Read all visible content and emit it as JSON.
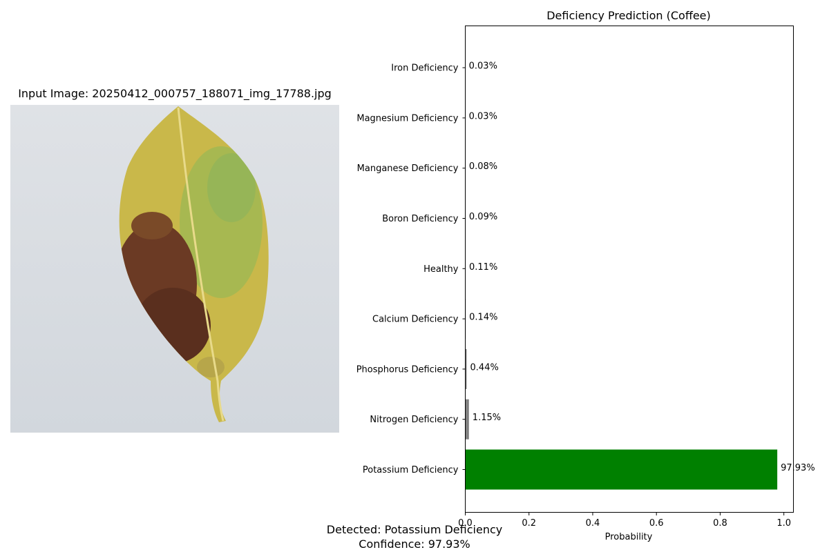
{
  "image_panel": {
    "title": "Input Image: 20250412_000757_188071_img_17788.jpg"
  },
  "summary": {
    "detected_line": "Detected: Potassium Deficiency",
    "confidence_line": "Confidence: 97.93%"
  },
  "chart_data": {
    "type": "bar",
    "orientation": "horizontal",
    "title": "Deficiency Prediction (Coffee)",
    "xlabel": "Probability",
    "ylabel": "",
    "xlim": [
      0,
      1.03
    ],
    "xticks": [
      "0.0",
      "0.2",
      "0.4",
      "0.6",
      "0.8",
      "1.0"
    ],
    "grid": false,
    "categories": [
      "Potassium Deficiency",
      "Nitrogen Deficiency",
      "Phosphorus Deficiency",
      "Calcium Deficiency",
      "Healthy",
      "Boron Deficiency",
      "Manganese Deficiency",
      "Magnesium Deficiency",
      "Iron Deficiency"
    ],
    "values": [
      0.9793,
      0.0115,
      0.0044,
      0.0014,
      0.0011,
      0.0009,
      0.0008,
      0.0003,
      0.0003
    ],
    "value_labels": [
      "97.93%",
      "1.15%",
      "0.44%",
      "0.14%",
      "0.11%",
      "0.09%",
      "0.08%",
      "0.03%",
      "0.03%"
    ],
    "colors": [
      "#008000",
      "#808080",
      "#808080",
      "#808080",
      "#808080",
      "#808080",
      "#808080",
      "#808080",
      "#808080"
    ]
  }
}
